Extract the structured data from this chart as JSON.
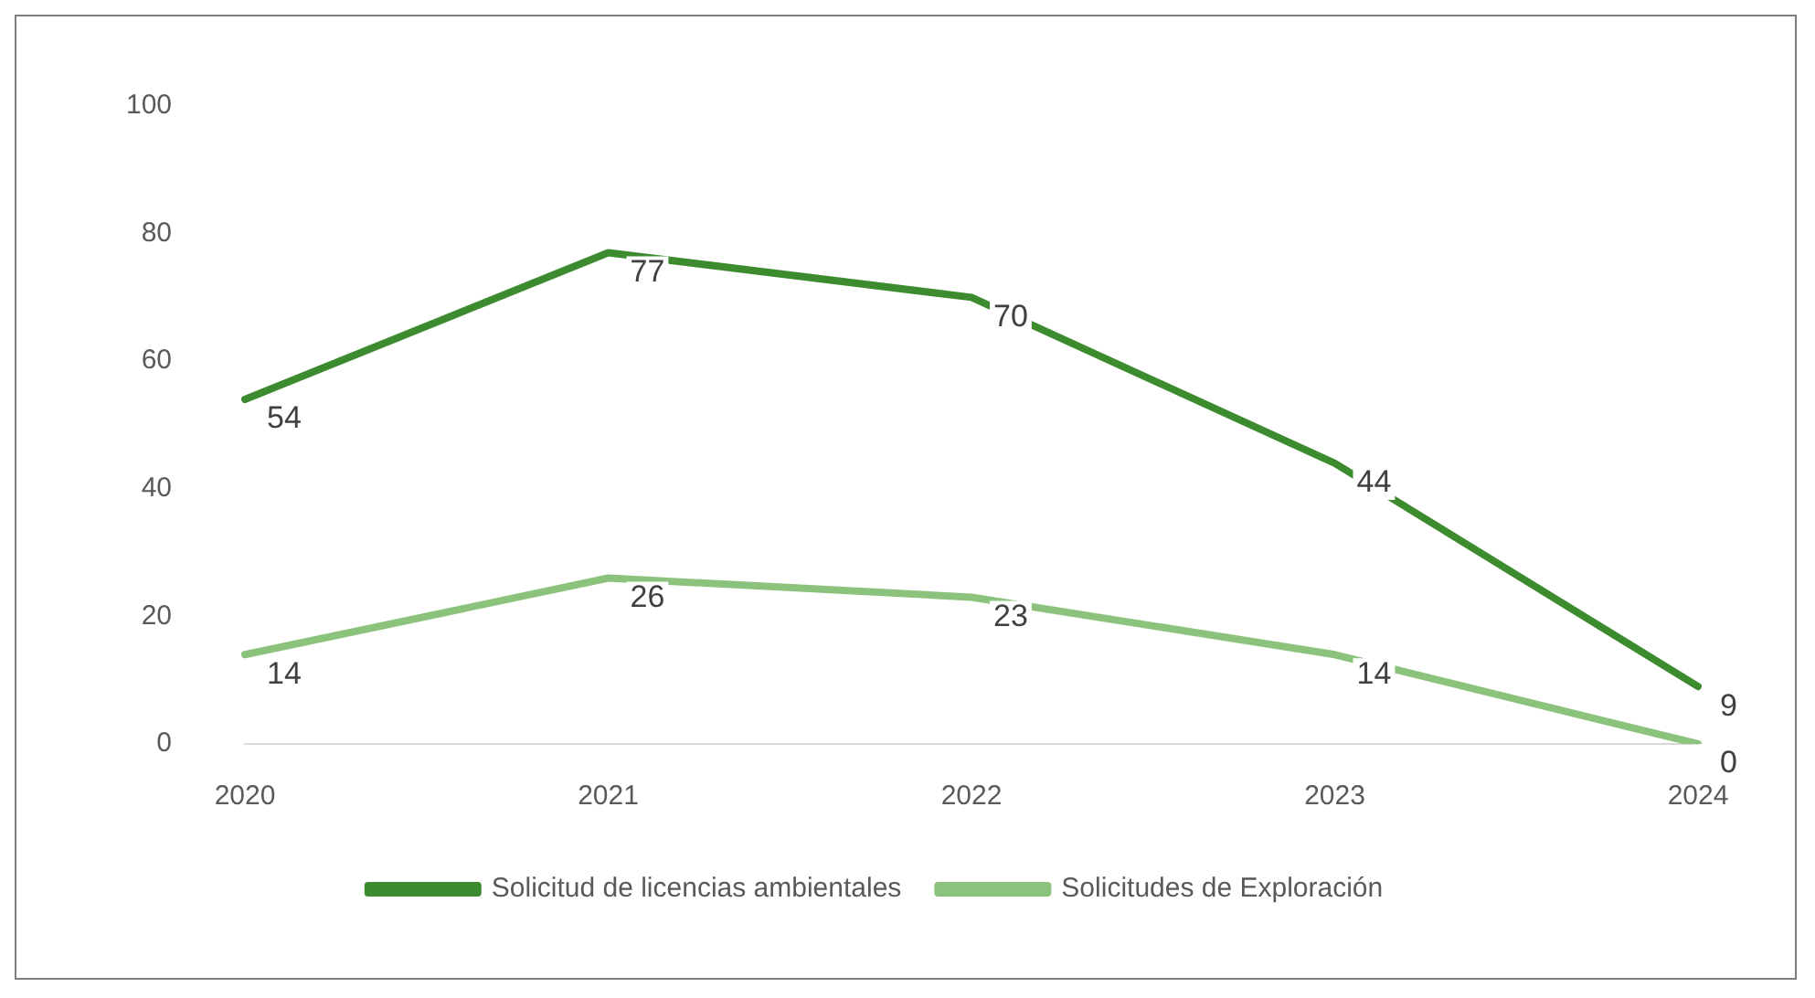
{
  "chart_data": {
    "type": "line",
    "categories": [
      "2020",
      "2021",
      "2022",
      "2023",
      "2024"
    ],
    "series": [
      {
        "name": "Solicitud de licencias ambientales",
        "color": "#3d8b2f",
        "values": [
          54,
          77,
          70,
          44,
          9
        ]
      },
      {
        "name": "Solicitudes de Exploración",
        "color": "#8cc37c",
        "values": [
          14,
          26,
          23,
          14,
          0
        ]
      }
    ],
    "ylim": [
      0,
      100
    ],
    "yticks": [
      0,
      20,
      40,
      60,
      80,
      100
    ],
    "grid": false,
    "legend": "bottom",
    "marker": "none",
    "line_style": "solid",
    "data_labels": true
  }
}
